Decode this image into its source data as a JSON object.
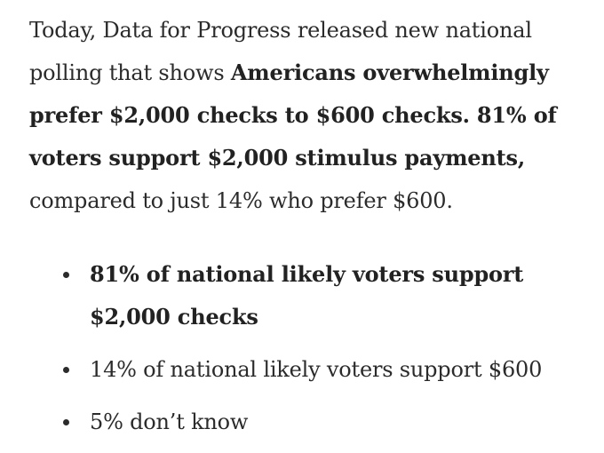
{
  "intro": {
    "lead": "Today, Data for Progress released new national polling that shows ",
    "bold": "Americans overwhelmingly prefer $2,000 checks to $600 checks. 81% of voters support $2,000 stimulus payments,",
    "tail": " compared to just 14% who prefer $600."
  },
  "bullets": [
    {
      "text": "81% of national likely voters support $2,000 checks",
      "bold": true
    },
    {
      "text": "14% of national likely voters support $600",
      "bold": false
    },
    {
      "text": "5% don’t know",
      "bold": false
    }
  ]
}
